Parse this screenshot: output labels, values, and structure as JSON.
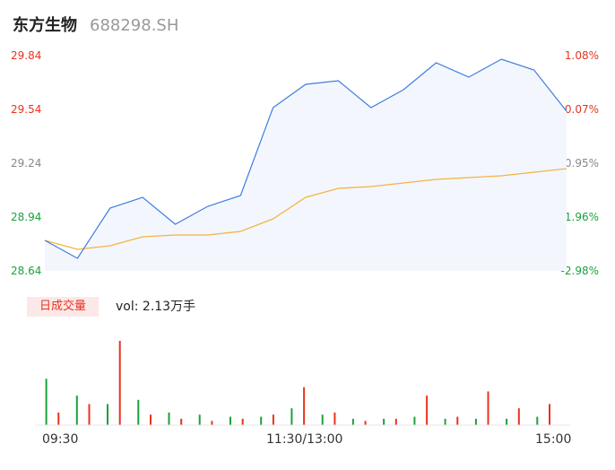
{
  "header": {
    "name": "东方生物",
    "code": "688298.SH"
  },
  "price_axis": {
    "left": [
      {
        "label": "29.84",
        "color": "#e8331f"
      },
      {
        "label": "29.54",
        "color": "#e8331f"
      },
      {
        "label": "29.24",
        "color": "#888888"
      },
      {
        "label": "28.94",
        "color": "#1aa23c"
      },
      {
        "label": "28.64",
        "color": "#1aa23c"
      }
    ],
    "right": [
      {
        "label": "1.08%",
        "color": "#e8331f"
      },
      {
        "label": "0.07%",
        "color": "#e8331f"
      },
      {
        "label": "-0.95%",
        "color": "#888888"
      },
      {
        "label": "-1.96%",
        "color": "#1aa23c"
      },
      {
        "label": "-2.98%",
        "color": "#1aa23c"
      }
    ]
  },
  "volume": {
    "tab_label": "日成交量",
    "summary": "vol: 2.13万手"
  },
  "time_axis": [
    "09:30",
    "11:30/13:00",
    "15:00"
  ],
  "colors": {
    "price_line": "#3f7de0",
    "avg_line": "#f5b342",
    "up": "#e8331f",
    "down": "#1aa23c",
    "area": "#f3f7fd"
  },
  "chart_data": {
    "type": "line",
    "ylim": [
      28.64,
      29.84
    ],
    "x": [
      "09:30",
      "09:45",
      "10:00",
      "10:15",
      "10:30",
      "10:45",
      "11:00",
      "11:15",
      "11:30/13:00",
      "13:15",
      "13:30",
      "13:45",
      "14:00",
      "14:15",
      "14:30",
      "14:45",
      "15:00"
    ],
    "series": [
      {
        "values": [
          28.81,
          28.71,
          28.99,
          29.05,
          28.9,
          29.0,
          29.06,
          29.55,
          29.68,
          29.7,
          29.55,
          29.65,
          29.8,
          29.72,
          29.82,
          29.76,
          29.53
        ]
      },
      {
        "values": [
          28.81,
          28.76,
          28.78,
          28.83,
          28.84,
          28.84,
          28.86,
          28.93,
          29.05,
          29.1,
          29.11,
          29.13,
          29.15,
          29.16,
          29.17,
          29.19,
          29.21
        ]
      }
    ],
    "volume_down": [
      22,
      14,
      10,
      12,
      6,
      5,
      4,
      4,
      8,
      5,
      3,
      3,
      4,
      3,
      3,
      3,
      4
    ],
    "volume_up": [
      6,
      10,
      40,
      5,
      3,
      2,
      3,
      5,
      18,
      6,
      2,
      3,
      14,
      4,
      16,
      8,
      10
    ]
  }
}
